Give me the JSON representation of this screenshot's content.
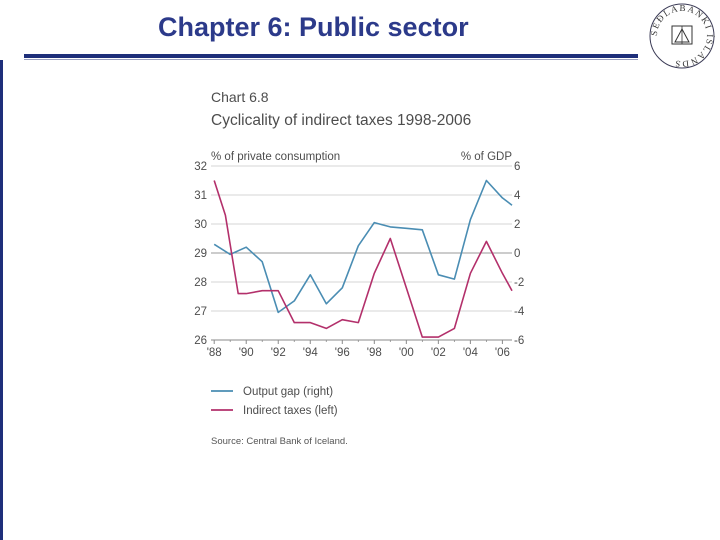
{
  "slide": {
    "title": "Chapter 6: Public sector"
  },
  "seal": {
    "text": "SEÐLABANKI ÍSLANDS"
  },
  "chart_data": {
    "type": "line",
    "number": "Chart 6.8",
    "title": "Cyclicality of indirect taxes 1998-2006",
    "left_axis_label": "% of private consumption",
    "right_axis_label": "% of GDP",
    "x_tick_labels": [
      "'88",
      "'90",
      "'92",
      "'94",
      "'96",
      "'98",
      "'00",
      "'02",
      "'04",
      "'06"
    ],
    "x_range": [
      1987.8,
      2006.6
    ],
    "left_ylim": [
      26,
      32
    ],
    "left_ticks": [
      "26",
      "27",
      "28",
      "29",
      "30",
      "31",
      "32"
    ],
    "right_ylim": [
      -6,
      6
    ],
    "right_ticks": [
      "-6",
      "-4",
      "-2",
      "0",
      "2",
      "4",
      "6"
    ],
    "grid": true,
    "legend_position": "below",
    "series": [
      {
        "name": "Output gap (right)",
        "axis": "right",
        "color": "#4a8db3",
        "x": [
          1988,
          1989,
          1990,
          1991,
          1992,
          1993,
          1994,
          1995,
          1996,
          1997,
          1998,
          1999,
          2000,
          2001,
          2002,
          2003,
          2004,
          2005,
          2006,
          2006.6
        ],
        "values": [
          0.6,
          -0.1,
          0.4,
          -0.6,
          -4.1,
          -3.3,
          -1.5,
          -3.5,
          -2.4,
          0.5,
          2.1,
          1.8,
          1.7,
          1.6,
          -1.5,
          -1.8,
          2.3,
          5.0,
          3.8,
          3.3
        ]
      },
      {
        "name": "Indirect taxes (left)",
        "axis": "left",
        "color": "#b3306b",
        "x": [
          1988,
          1988.7,
          1989.5,
          1990,
          1991,
          1992,
          1993,
          1994,
          1995,
          1996,
          1997,
          1998,
          1999,
          2000,
          2001,
          2002,
          2003,
          2004,
          2005,
          2006,
          2006.6
        ],
        "values": [
          31.5,
          30.3,
          27.6,
          27.6,
          27.7,
          27.7,
          26.6,
          26.6,
          26.4,
          26.7,
          26.6,
          28.3,
          29.5,
          27.8,
          26.1,
          26.1,
          26.4,
          28.3,
          29.4,
          28.3,
          27.7
        ]
      }
    ],
    "source": "Source: Central Bank of Iceland."
  }
}
